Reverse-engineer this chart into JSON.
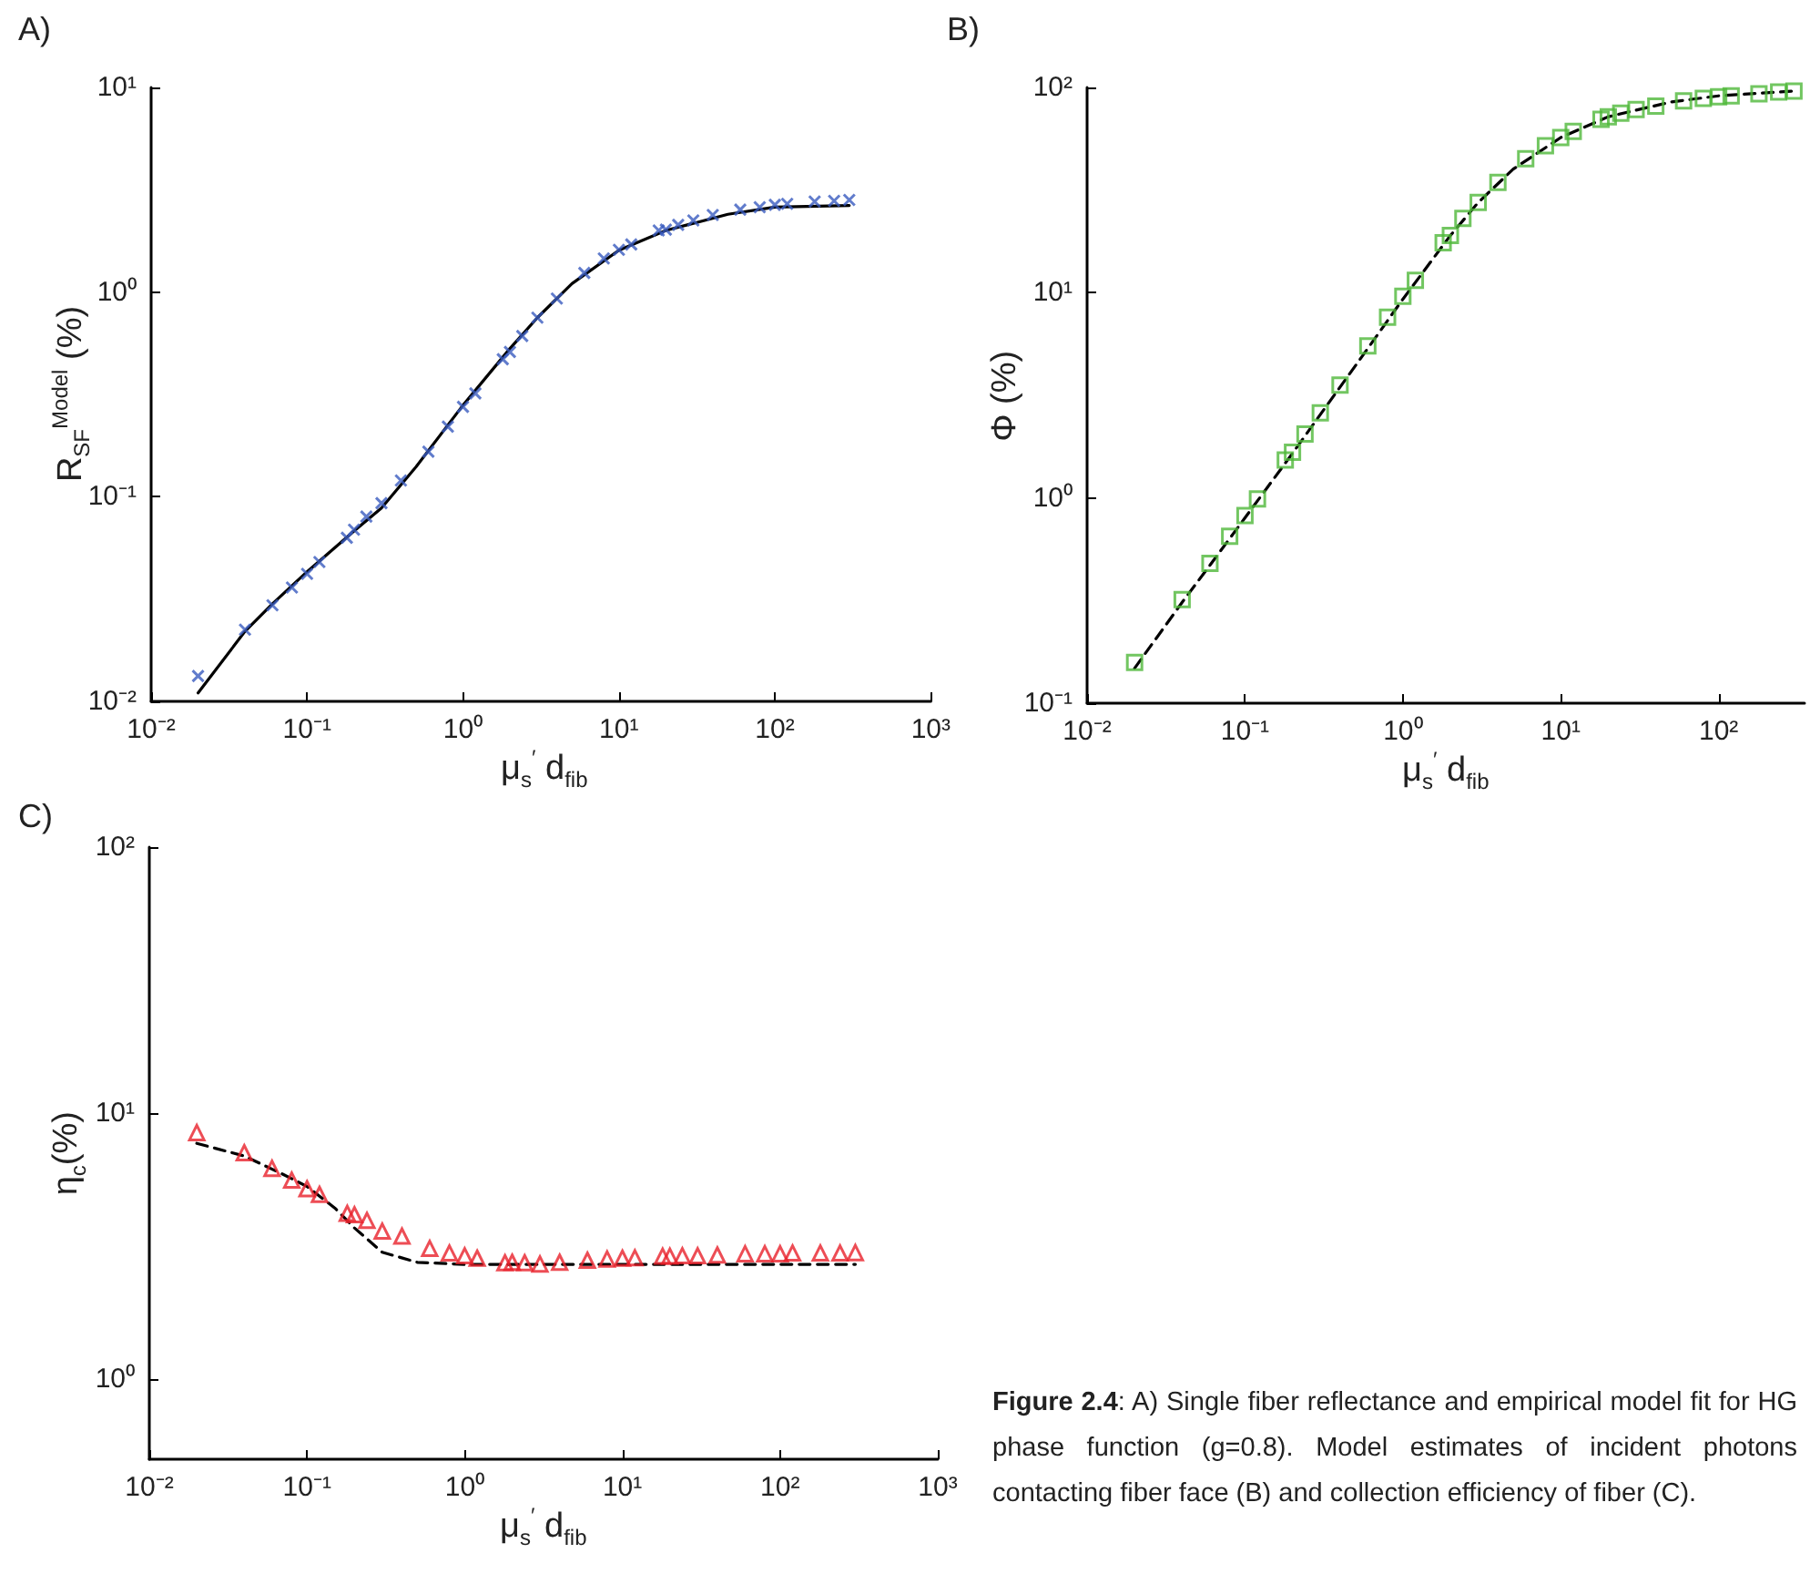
{
  "chart_data": [
    {
      "type": "scatter",
      "title": "A)",
      "xlabel": "μ$_{s}$$^{′}$ d$_{fib}$",
      "ylabel": "R$_{SF}$$^{Model}$ (%)",
      "log": "xy",
      "xlim": [
        0.01,
        1000
      ],
      "ylim": [
        0.01,
        10
      ],
      "xticks": [
        {
          "value": 0.01,
          "label": "10⁻²"
        },
        {
          "value": 0.1,
          "label": "10⁻¹"
        },
        {
          "value": 1,
          "label": "10⁰"
        },
        {
          "value": 10,
          "label": "10¹"
        },
        {
          "value": 100,
          "label": "10²"
        },
        {
          "value": 1000,
          "label": "10³"
        }
      ],
      "yticks": [
        {
          "value": 0.01,
          "label": "10⁻²"
        },
        {
          "value": 0.1,
          "label": "10⁻¹"
        },
        {
          "value": 1,
          "label": "10⁰"
        },
        {
          "value": 10,
          "label": "10¹"
        }
      ],
      "series": [
        {
          "type": "scatter",
          "color": "#3a5bbf",
          "marker": "cross",
          "x": [
            0.02,
            0.04,
            0.06,
            0.08,
            0.1,
            0.12,
            0.18,
            0.2,
            0.24,
            0.3,
            0.4,
            0.6,
            0.8,
            1,
            1.2,
            1.8,
            2,
            2.4,
            3,
            4,
            6,
            8,
            10,
            12,
            18,
            20,
            24,
            30,
            40,
            60,
            80,
            100,
            120,
            180,
            240,
            300
          ],
          "values": [
            0.0133,
            0.0224,
            0.0295,
            0.036,
            0.042,
            0.048,
            0.063,
            0.069,
            0.08,
            0.093,
            0.12,
            0.166,
            0.22,
            0.275,
            0.32,
            0.47,
            0.51,
            0.61,
            0.75,
            0.93,
            1.24,
            1.46,
            1.61,
            1.71,
            2.0,
            2.02,
            2.13,
            2.24,
            2.38,
            2.53,
            2.6,
            2.67,
            2.7,
            2.77,
            2.79,
            2.82
          ]
        },
        {
          "type": "line",
          "color": "#000000",
          "marker": "none",
          "line_style": "solid",
          "x": [
            0.02,
            0.04,
            0.06,
            0.1,
            0.2,
            0.3,
            0.5,
            1,
            2,
            3,
            5,
            10,
            20,
            50,
            100,
            300
          ],
          "values": [
            0.011,
            0.022,
            0.03,
            0.043,
            0.068,
            0.088,
            0.14,
            0.28,
            0.53,
            0.75,
            1.1,
            1.6,
            2.0,
            2.4,
            2.6,
            2.65
          ]
        }
      ]
    },
    {
      "type": "scatter",
      "title": "B)",
      "xlabel": "μ$_{s}$$^{′}$ d$_{fib}$",
      "ylabel": "Φ (%)",
      "log": "xy",
      "xlim": [
        0.01,
        350
      ],
      "ylim": [
        0.1,
        100
      ],
      "xticks": [
        {
          "value": 0.01,
          "label": "10⁻²"
        },
        {
          "value": 0.1,
          "label": "10⁻¹"
        },
        {
          "value": 1,
          "label": "10⁰"
        },
        {
          "value": 10,
          "label": "10¹"
        },
        {
          "value": 100,
          "label": "10²"
        }
      ],
      "yticks": [
        {
          "value": 0.1,
          "label": "10⁻¹"
        },
        {
          "value": 1,
          "label": "10⁰"
        },
        {
          "value": 10,
          "label": "10¹"
        },
        {
          "value": 100,
          "label": "10²"
        }
      ],
      "series": [
        {
          "type": "scatter",
          "color": "#4fb83a",
          "marker": "square",
          "x": [
            0.02,
            0.04,
            0.06,
            0.08,
            0.1,
            0.12,
            0.18,
            0.2,
            0.24,
            0.3,
            0.4,
            0.6,
            0.8,
            1,
            1.2,
            1.8,
            2,
            2.4,
            3,
            4,
            6,
            8,
            10,
            12,
            18,
            20,
            24,
            30,
            40,
            60,
            80,
            100,
            120,
            180,
            240,
            300
          ],
          "values": [
            0.158,
            0.32,
            0.48,
            0.65,
            0.82,
            0.99,
            1.53,
            1.67,
            2.05,
            2.6,
            3.55,
            5.5,
            7.6,
            9.6,
            11.5,
            17.5,
            19,
            23,
            27.5,
            34.5,
            45,
            52,
            57,
            61,
            70,
            72,
            75,
            78,
            81,
            86,
            88.5,
            90,
            91,
            93,
            95,
            96
          ]
        },
        {
          "type": "line",
          "color": "#000000",
          "marker": "none",
          "line_style": "dashed",
          "x": [
            0.02,
            0.04,
            0.06,
            0.1,
            0.2,
            0.3,
            0.5,
            1,
            2,
            3,
            5,
            10,
            20,
            50,
            100,
            300
          ],
          "values": [
            0.148,
            0.31,
            0.47,
            0.8,
            1.65,
            2.55,
            4.4,
            9.3,
            19,
            27.5,
            40,
            57,
            72,
            85,
            91,
            96
          ]
        }
      ]
    },
    {
      "type": "scatter",
      "title": "C)",
      "xlabel": "μ$_{s}$$^{′}$ d$_{fib}$",
      "ylabel": "η$_{c}$(%)",
      "log": "xy",
      "xlim": [
        0.01,
        1000
      ],
      "ylim": [
        0.5,
        100
      ],
      "xticks": [
        {
          "value": 0.01,
          "label": "10⁻²"
        },
        {
          "value": 0.1,
          "label": "10⁻¹"
        },
        {
          "value": 1,
          "label": "10⁰"
        },
        {
          "value": 10,
          "label": "10¹"
        },
        {
          "value": 100,
          "label": "10²"
        },
        {
          "value": 1000,
          "label": "10³"
        }
      ],
      "yticks": [
        {
          "value": 1,
          "label": "10⁰"
        },
        {
          "value": 10,
          "label": "10¹"
        },
        {
          "value": 100,
          "label": "10²"
        }
      ],
      "series": [
        {
          "type": "scatter",
          "color": "#e8202a",
          "marker": "triangle",
          "x": [
            0.02,
            0.04,
            0.06,
            0.08,
            0.1,
            0.12,
            0.18,
            0.2,
            0.24,
            0.3,
            0.4,
            0.6,
            0.8,
            1,
            1.2,
            1.8,
            2,
            2.4,
            3,
            4,
            6,
            8,
            10,
            12,
            18,
            20,
            24,
            30,
            40,
            60,
            80,
            100,
            120,
            180,
            240,
            300
          ],
          "values": [
            8.45,
            7.1,
            6.2,
            5.6,
            5.2,
            4.95,
            4.2,
            4.15,
            3.95,
            3.6,
            3.45,
            3.1,
            2.98,
            2.91,
            2.85,
            2.74,
            2.75,
            2.74,
            2.71,
            2.75,
            2.8,
            2.83,
            2.85,
            2.86,
            2.9,
            2.9,
            2.91,
            2.91,
            2.93,
            2.96,
            2.96,
            2.96,
            2.98,
            2.98,
            2.98,
            2.99
          ]
        },
        {
          "type": "line",
          "color": "#000000",
          "marker": "none",
          "line_style": "dashed",
          "x": [
            0.02,
            0.04,
            0.07,
            0.1,
            0.15,
            0.2,
            0.3,
            0.5,
            1,
            3,
            10,
            30,
            100,
            300
          ],
          "values": [
            7.7,
            6.9,
            5.9,
            5.3,
            4.4,
            3.7,
            3.0,
            2.75,
            2.7,
            2.7,
            2.7,
            2.7,
            2.7,
            2.7
          ]
        }
      ]
    },
    {
      "type": "other",
      "title": "Figure 2.4",
      "annotations": [
        ": A) Single fiber reflectance and empirical model fit for HG phase function (g=0.8). Model estimates of incident photons contacting fiber face (B) and collection efficiency of fiber (C)."
      ]
    }
  ]
}
